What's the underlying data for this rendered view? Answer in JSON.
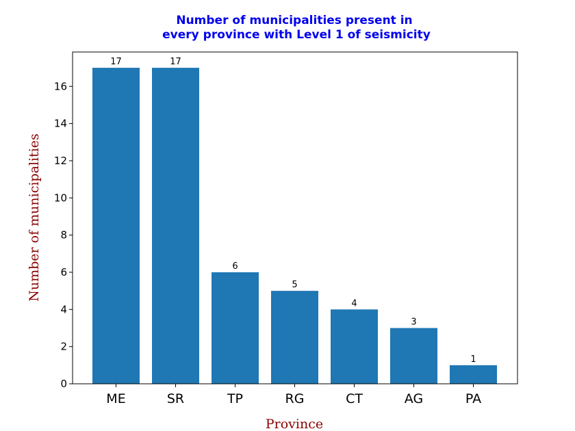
{
  "chart_data": {
    "type": "bar",
    "title_line1": "Number of municipalities present in",
    "title_line2": "every province with Level 1 of seismicity",
    "xlabel": "Province",
    "ylabel": "Number of municipalities",
    "categories": [
      "ME",
      "SR",
      "TP",
      "RG",
      "CT",
      "AG",
      "PA"
    ],
    "values": [
      17,
      17,
      6,
      5,
      4,
      3,
      1
    ],
    "ylim": [
      0,
      17.85
    ],
    "yticks": [
      0,
      2,
      4,
      6,
      8,
      10,
      12,
      14,
      16
    ],
    "grid": false,
    "colors": {
      "bar": "#1f77b4",
      "title": "#0000ee",
      "axis_label": "#8b0000",
      "frame": "#000000"
    }
  }
}
